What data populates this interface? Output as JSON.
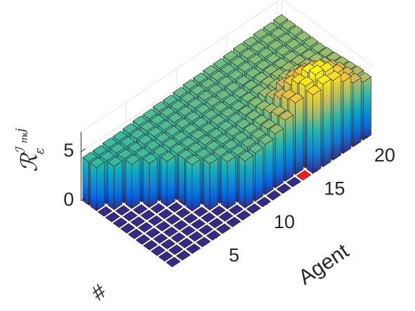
{
  "chart_data": {
    "type": "bar3",
    "x_label": "#",
    "y_label": "Agent",
    "z_label": {
      "main": "ℛ",
      "sub": "ε",
      "sup": "ℐ",
      "sup_sub": "m",
      "sup_tail": ",j"
    },
    "xlim": [
      0.5,
      12.5
    ],
    "ylim": [
      0.5,
      20.5
    ],
    "zlim": [
      0,
      7
    ],
    "yticks": [
      5,
      10,
      15,
      20
    ],
    "zticks": [
      0,
      5
    ],
    "colormap": [
      "#352a87",
      "#0363e1",
      "#1485d4",
      "#06a7c6",
      "#38b99e",
      "#92bf73",
      "#d9ba56",
      "#fcce2e",
      "#f9fb0e"
    ],
    "clim": [
      0,
      8.8
    ],
    "highlight": {
      "index": 1,
      "agent": 14,
      "color": "#ff1a1a"
    },
    "z": [
      [
        0,
        0,
        0,
        0,
        0,
        0,
        0,
        0,
        0,
        0,
        4.4,
        4.4
      ],
      [
        0,
        0,
        0,
        0,
        0,
        0,
        0,
        0,
        0,
        4.4,
        4.4,
        4.4
      ],
      [
        0,
        0,
        0,
        0,
        0,
        0,
        0,
        0,
        4.5,
        4.5,
        4.5,
        4.5
      ],
      [
        0,
        0,
        0,
        0,
        0,
        0,
        0,
        4.5,
        4.5,
        4.5,
        4.5,
        4.5
      ],
      [
        0,
        0,
        0,
        0,
        0,
        0,
        4.6,
        4.6,
        4.6,
        4.6,
        4.6,
        4.6
      ],
      [
        0,
        0,
        0,
        0,
        4.7,
        4.7,
        4.7,
        4.7,
        4.7,
        4.7,
        4.7,
        4.7
      ],
      [
        0,
        0,
        0,
        4.7,
        4.7,
        4.7,
        4.7,
        4.7,
        4.7,
        4.7,
        4.7,
        4.7
      ],
      [
        0,
        0,
        4.8,
        4.8,
        4.8,
        4.8,
        4.8,
        4.8,
        4.8,
        4.8,
        4.8,
        4.8
      ],
      [
        0,
        4.8,
        4.8,
        4.8,
        4.8,
        4.8,
        4.8,
        4.8,
        4.8,
        4.8,
        4.8,
        4.8
      ],
      [
        0,
        4.9,
        4.9,
        4.9,
        4.9,
        4.9,
        4.9,
        4.9,
        4.9,
        4.9,
        4.9,
        4.9
      ],
      [
        0,
        5.1,
        5.1,
        5.1,
        5.0,
        5.0,
        5.0,
        5.0,
        5.0,
        5.0,
        5.0,
        5.0
      ],
      [
        0,
        5.5,
        5.4,
        5.3,
        5.2,
        5.1,
        5.0,
        5.0,
        5.0,
        5.0,
        5.0,
        5.0
      ],
      [
        0,
        6.2,
        6.1,
        5.8,
        5.5,
        5.3,
        5.2,
        5.1,
        5.1,
        5.1,
        5.1,
        5.1
      ],
      [
        0,
        7.3,
        7.1,
        6.6,
        6.0,
        5.6,
        5.3,
        5.2,
        5.1,
        5.1,
        5.1,
        5.1
      ],
      [
        8.0,
        8.3,
        8.0,
        7.3,
        6.5,
        5.8,
        5.5,
        5.3,
        5.2,
        5.2,
        5.2,
        5.2
      ],
      [
        8.4,
        8.8,
        8.4,
        7.6,
        6.7,
        6.0,
        5.6,
        5.4,
        5.3,
        5.3,
        5.3,
        5.3
      ],
      [
        8.1,
        8.4,
        8.1,
        7.4,
        6.6,
        5.9,
        5.6,
        5.4,
        5.3,
        5.3,
        5.3,
        5.3
      ],
      [
        7.3,
        7.5,
        7.3,
        6.8,
        6.2,
        5.8,
        5.6,
        5.4,
        5.4,
        5.4,
        5.4,
        5.4
      ],
      [
        6.5,
        6.6,
        6.5,
        6.2,
        5.9,
        5.7,
        5.5,
        5.4,
        5.4,
        5.4,
        5.4,
        5.4
      ],
      [
        5.9,
        6.0,
        5.9,
        5.8,
        5.7,
        5.6,
        5.5,
        5.5,
        5.5,
        5.5,
        5.5,
        5.5
      ]
    ]
  }
}
